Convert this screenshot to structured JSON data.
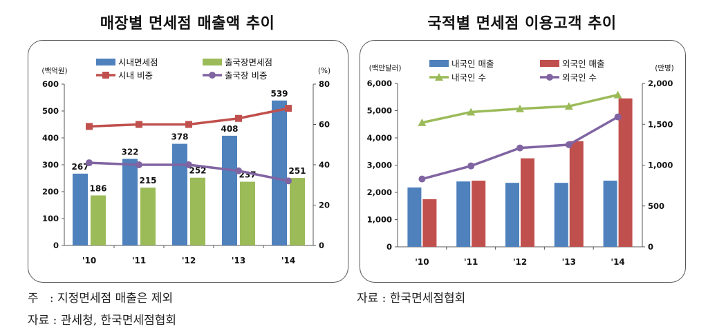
{
  "panels": [
    {
      "title": "매장별 면세점 매출액 추이"
    },
    {
      "title": "국적별 면세점 이용고객 추이"
    }
  ],
  "chart_data": [
    {
      "type": "bar",
      "title": "매장별 면세점 매출액 추이",
      "categories": [
        "'10",
        "'11",
        "'12",
        "'13",
        "'14"
      ],
      "ylabel_left": "(백억원)",
      "ylabel_right": "(%)",
      "ylim_left": [
        0,
        600
      ],
      "ylim_right": [
        0,
        80
      ],
      "yticks_left": [
        0,
        100,
        200,
        300,
        400,
        500,
        600
      ],
      "yticks_right": [
        0,
        20,
        40,
        60,
        80
      ],
      "bar_series": [
        {
          "name": "시내면세점",
          "axis": "left",
          "color": "#4f81bd",
          "values": [
            267,
            322,
            378,
            408,
            539
          ],
          "labels": [
            "267",
            "322",
            "378",
            "408",
            "539"
          ]
        },
        {
          "name": "출국장면세점",
          "axis": "left",
          "color": "#9bbb59",
          "values": [
            186,
            215,
            252,
            237,
            251
          ],
          "labels": [
            "186",
            "215",
            "252",
            "237",
            "251"
          ]
        }
      ],
      "line_series": [
        {
          "name": "시내 비중",
          "axis": "right",
          "color": "#c0504d",
          "marker": "square",
          "values": [
            59,
            60,
            60,
            63,
            68
          ]
        },
        {
          "name": "출국장 비중",
          "axis": "right",
          "color": "#8064a2",
          "marker": "circle",
          "values": [
            41,
            40,
            40,
            37,
            32
          ]
        }
      ],
      "legend_order": [
        "시내면세점",
        "출국장면세점",
        "시내 비중",
        "출국장 비중"
      ],
      "legend_placement": "top"
    },
    {
      "type": "bar",
      "title": "국적별 면세점 이용고객 추이",
      "categories": [
        "'10",
        "'11",
        "'12",
        "'13",
        "'14"
      ],
      "ylabel_left": "(백만달러)",
      "ylabel_right": "(만명)",
      "ylim_left": [
        0,
        6000
      ],
      "ylim_right": [
        0,
        2000
      ],
      "yticks_left": [
        0,
        1000,
        2000,
        3000,
        4000,
        5000,
        6000
      ],
      "yticks_right": [
        0,
        500,
        1000,
        1500,
        2000
      ],
      "ytick_labels_left": [
        "0",
        "1,000",
        "2,000",
        "3,000",
        "4,000",
        "5,000",
        "6,000"
      ],
      "ytick_labels_right": [
        "0",
        "500",
        "1,000",
        "1,500",
        "2,000"
      ],
      "bar_series": [
        {
          "name": "내국인 매출",
          "axis": "left",
          "color": "#4f81bd",
          "values": [
            2180,
            2400,
            2350,
            2350,
            2430
          ]
        },
        {
          "name": "외국인 매출",
          "axis": "left",
          "color": "#c0504d",
          "values": [
            1750,
            2430,
            3250,
            3880,
            5450
          ]
        }
      ],
      "line_series": [
        {
          "name": "내국인 수",
          "axis": "right",
          "color": "#9bbb59",
          "marker": "triangle",
          "values": [
            1520,
            1650,
            1690,
            1720,
            1860
          ]
        },
        {
          "name": "외국인 수",
          "axis": "right",
          "color": "#8064a2",
          "marker": "circle",
          "values": [
            830,
            990,
            1210,
            1250,
            1590
          ]
        }
      ],
      "legend_order": [
        "내국인 매출",
        "외국인 매출",
        "내국인 수",
        "외국인 수"
      ],
      "legend_placement": "top"
    }
  ],
  "footnotes": {
    "left_note": "주   : 지정면세점 매출은 제외",
    "left_source": "자료 : 관세청, 한국면세점협회",
    "right_source": "자료 : 한국면세점협회"
  }
}
